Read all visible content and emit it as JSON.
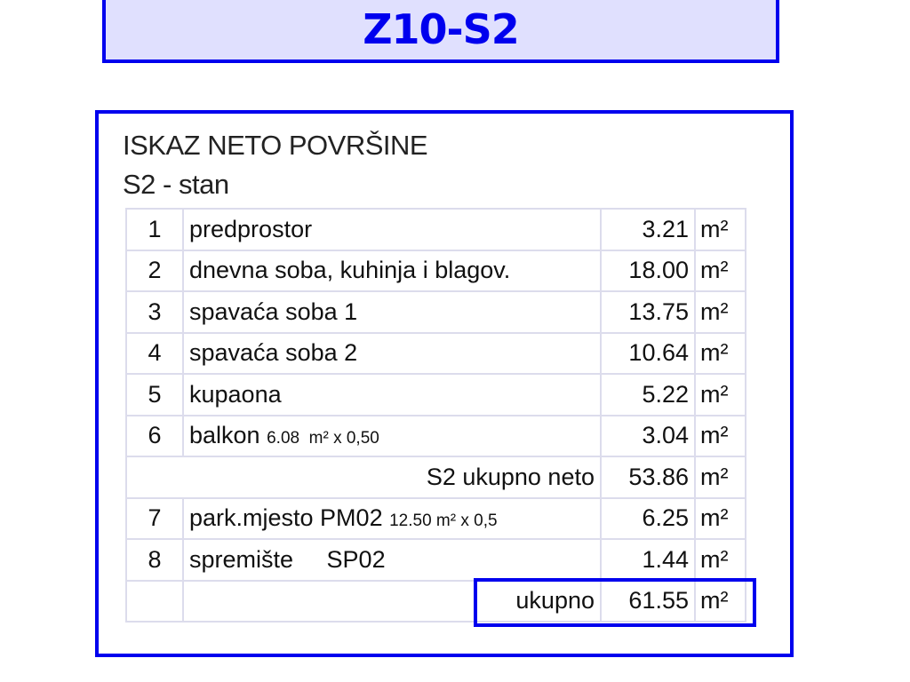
{
  "title": "Z10-S2",
  "heading": "ISKAZ NETO POVRŠINE",
  "subheading": "S2 - stan",
  "unit": "m²",
  "rows": [
    {
      "num": "1",
      "desc": "predprostor",
      "note": "",
      "value": "3.21"
    },
    {
      "num": "2",
      "desc": "dnevna soba, kuhinja i blagov.",
      "note": "",
      "value": "18.00"
    },
    {
      "num": "3",
      "desc": "spavaća soba 1",
      "note": "",
      "value": "13.75"
    },
    {
      "num": "4",
      "desc": "spavaća soba 2",
      "note": "",
      "value": "10.64"
    },
    {
      "num": "5",
      "desc": "kupaona",
      "note": "",
      "value": "5.22"
    },
    {
      "num": "6",
      "desc": "balkon",
      "note": "6.08  m² x 0,50",
      "value": "3.04"
    }
  ],
  "subtotal": {
    "label": "S2 ukupno neto",
    "value": "53.86"
  },
  "extra_rows": [
    {
      "num": "7",
      "desc": "park.mjesto PM02",
      "note": "12.50 m² x 0,5",
      "value": "6.25"
    },
    {
      "num": "8",
      "desc": "spremište     SP02",
      "note": "",
      "value": "1.44"
    }
  ],
  "total": {
    "label": "ukupno",
    "value": "61.55"
  },
  "colors": {
    "accent": "#0000ee",
    "title_fill": "#e0e0fe"
  }
}
